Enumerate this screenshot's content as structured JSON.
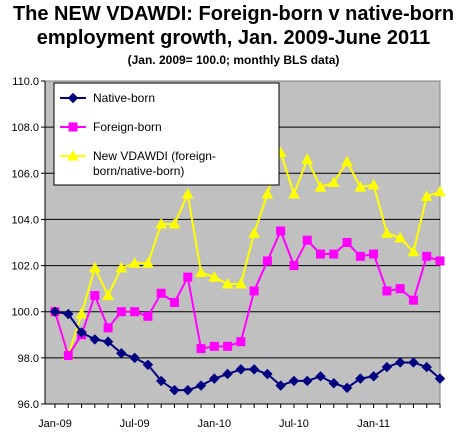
{
  "title_line1": "The NEW VDAWDI: Foreign-born v native-born",
  "title_line2": "employment growth, Jan. 2009-June 2011",
  "subtitle": "(Jan. 2009= 100.0; monthly BLS data)",
  "chart_data": {
    "type": "line",
    "ylim": [
      96.0,
      110.0
    ],
    "y_ticks": [
      "96.0",
      "98.0",
      "100.0",
      "102.0",
      "104.0",
      "106.0",
      "108.0",
      "110.0"
    ],
    "x_ticks": [
      {
        "label": "Jan-09",
        "index": 0
      },
      {
        "label": "Jul-09",
        "index": 6
      },
      {
        "label": "Jan-10",
        "index": 12
      },
      {
        "label": "Jul-10",
        "index": 18
      },
      {
        "label": "Jan-11",
        "index": 24
      }
    ],
    "n_points": 30,
    "grid": "horizontal",
    "legend_position": "top-left",
    "plot_background": "#c0c0c0",
    "series": [
      {
        "name": "Native-born",
        "color": "#000080",
        "marker": "diamond",
        "values": [
          100.0,
          99.9,
          99.1,
          98.8,
          98.7,
          98.2,
          98.0,
          97.7,
          97.0,
          96.6,
          96.6,
          96.8,
          97.1,
          97.3,
          97.5,
          97.5,
          97.3,
          96.8,
          97.0,
          97.0,
          97.2,
          96.9,
          96.7,
          97.1,
          97.2,
          97.6,
          97.8,
          97.8,
          97.6,
          97.1
        ]
      },
      {
        "name": "Foreign-born",
        "color": "#ff00ff",
        "marker": "square",
        "values": [
          100.0,
          98.1,
          99.0,
          100.7,
          99.3,
          100.0,
          100.0,
          99.8,
          100.8,
          100.4,
          101.5,
          98.4,
          98.5,
          98.5,
          98.7,
          100.9,
          102.2,
          103.5,
          102.0,
          103.1,
          102.5,
          102.5,
          103.0,
          102.4,
          102.5,
          100.9,
          101.0,
          100.5,
          102.4,
          102.2
        ]
      },
      {
        "name": "New VDAWDI  (foreign-born/native-born)",
        "legend_lines": [
          "New VDAWDI  (foreign-",
          "born/native-born)"
        ],
        "color": "#ffff00",
        "marker": "triangle",
        "values": [
          100.0,
          98.1,
          99.9,
          101.9,
          100.7,
          101.9,
          102.1,
          102.1,
          103.8,
          103.8,
          105.1,
          101.7,
          101.5,
          101.2,
          101.2,
          103.4,
          105.1,
          106.9,
          105.1,
          106.6,
          105.4,
          105.6,
          106.5,
          105.4,
          105.5,
          103.4,
          103.2,
          102.6,
          105.0,
          105.2
        ]
      }
    ]
  }
}
